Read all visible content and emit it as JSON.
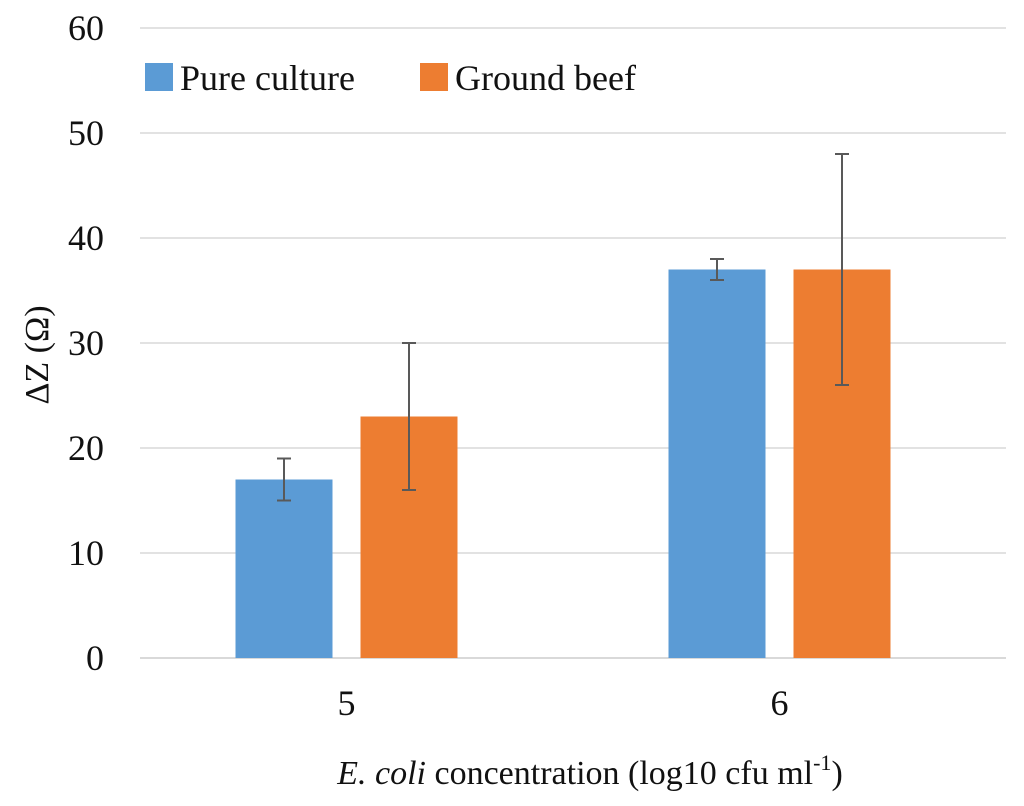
{
  "chart_data": {
    "type": "bar",
    "title": "",
    "categories": [
      "5",
      "6"
    ],
    "series": [
      {
        "name": "Pure culture",
        "color": "#5b9bd5",
        "values": [
          17,
          37
        ],
        "error_low": [
          15,
          36
        ],
        "error_high": [
          19,
          38
        ]
      },
      {
        "name": "Ground beef",
        "color": "#ed7d31",
        "values": [
          23,
          37
        ],
        "error_low": [
          16,
          26
        ],
        "error_high": [
          30,
          48
        ]
      }
    ],
    "ylim": [
      0,
      60
    ],
    "yticks": [
      "0",
      "10",
      "20",
      "30",
      "40",
      "50",
      "60"
    ],
    "ylabel": "ΔZ (Ω)",
    "xlabel": {
      "italic_part": "E. coli",
      "rest": " concentration (log10 cfu ml",
      "superscript": "-1",
      "close": ")"
    },
    "legend_position": "top-left",
    "grid": true
  }
}
